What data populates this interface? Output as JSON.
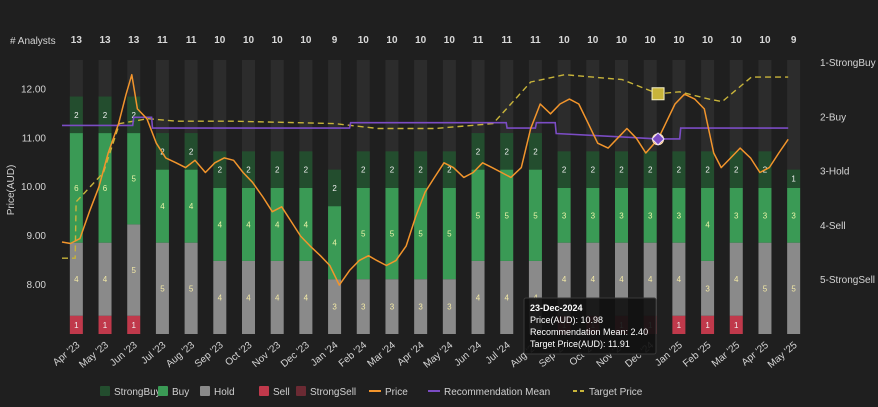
{
  "chart_data": {
    "type": "bar+line",
    "analysts_label": "# Analysts",
    "y_left_label": "Price(AUD)",
    "y_left_ticks": [
      "8.00",
      "9.00",
      "10.00",
      "11.00",
      "12.00"
    ],
    "y_left_range": [
      7.0,
      12.6
    ],
    "y_right_ticks": [
      "1-StrongBuy",
      "2-Buy",
      "3-Hold",
      "4-Sell",
      "5-StrongSell"
    ],
    "x_ticks": [
      "Apr '23",
      "May '23",
      "Jun '23",
      "Jul '23",
      "Aug '23",
      "Sep '23",
      "Oct '23",
      "Nov '23",
      "Dec '23",
      "Jan '24",
      "Feb '24",
      "Mar '24",
      "Apr '24",
      "May '24",
      "Jun '24",
      "Jul '24",
      "Aug '24",
      "Sep '24",
      "Oct '24",
      "Nov '24",
      "Dec '24",
      "Jan '25",
      "Feb '25",
      "Mar '25",
      "Apr '25",
      "May '25"
    ],
    "months": [
      "2023-04",
      "2023-05",
      "2023-06",
      "2023-07",
      "2023-08",
      "2023-09",
      "2023-10",
      "2023-11",
      "2023-12",
      "2024-01",
      "2024-02",
      "2024-03",
      "2024-04",
      "2024-05",
      "2024-06",
      "2024-07",
      "2024-08",
      "2024-09",
      "2024-10",
      "2024-11",
      "2024-12",
      "2025-01",
      "2025-02",
      "2025-03",
      "2025-04",
      "2025-05"
    ],
    "analyst_counts": [
      "13",
      "13",
      "13",
      "11",
      "11",
      "10",
      "10",
      "10",
      "10",
      "9",
      "10",
      "10",
      "10",
      "10",
      "11",
      "11",
      "11",
      "10",
      "10",
      "10",
      "10",
      "10",
      "10",
      "10",
      "10",
      "9"
    ],
    "ratings": [
      {
        "strong_buy": 2,
        "buy": 6,
        "hold": 4,
        "sell": 1,
        "strong_sell": 0
      },
      {
        "strong_buy": 2,
        "buy": 6,
        "hold": 4,
        "sell": 1,
        "strong_sell": 0
      },
      {
        "strong_buy": 2,
        "buy": 5,
        "hold": 5,
        "sell": 1,
        "strong_sell": 0
      },
      {
        "strong_buy": 2,
        "buy": 4,
        "hold": 5,
        "sell": 0,
        "strong_sell": 0
      },
      {
        "strong_buy": 2,
        "buy": 4,
        "hold": 5,
        "sell": 0,
        "strong_sell": 0
      },
      {
        "strong_buy": 2,
        "buy": 4,
        "hold": 4,
        "sell": 0,
        "strong_sell": 0
      },
      {
        "strong_buy": 2,
        "buy": 4,
        "hold": 4,
        "sell": 0,
        "strong_sell": 0
      },
      {
        "strong_buy": 2,
        "buy": 4,
        "hold": 4,
        "sell": 0,
        "strong_sell": 0
      },
      {
        "strong_buy": 2,
        "buy": 4,
        "hold": 4,
        "sell": 0,
        "strong_sell": 0
      },
      {
        "strong_buy": 2,
        "buy": 4,
        "hold": 3,
        "sell": 0,
        "strong_sell": 0
      },
      {
        "strong_buy": 2,
        "buy": 5,
        "hold": 3,
        "sell": 0,
        "strong_sell": 0
      },
      {
        "strong_buy": 2,
        "buy": 5,
        "hold": 3,
        "sell": 0,
        "strong_sell": 0
      },
      {
        "strong_buy": 2,
        "buy": 5,
        "hold": 3,
        "sell": 0,
        "strong_sell": 0
      },
      {
        "strong_buy": 2,
        "buy": 5,
        "hold": 3,
        "sell": 0,
        "strong_sell": 0
      },
      {
        "strong_buy": 2,
        "buy": 5,
        "hold": 4,
        "sell": 0,
        "strong_sell": 0
      },
      {
        "strong_buy": 2,
        "buy": 5,
        "hold": 4,
        "sell": 0,
        "strong_sell": 0
      },
      {
        "strong_buy": 2,
        "buy": 5,
        "hold": 4,
        "sell": 0,
        "strong_sell": 0
      },
      {
        "strong_buy": 2,
        "buy": 3,
        "hold": 4,
        "sell": 1,
        "strong_sell": 0
      },
      {
        "strong_buy": 2,
        "buy": 3,
        "hold": 4,
        "sell": 1,
        "strong_sell": 0
      },
      {
        "strong_buy": 2,
        "buy": 3,
        "hold": 4,
        "sell": 1,
        "strong_sell": 0
      },
      {
        "strong_buy": 2,
        "buy": 3,
        "hold": 4,
        "sell": 1,
        "strong_sell": 0
      },
      {
        "strong_buy": 2,
        "buy": 3,
        "hold": 4,
        "sell": 1,
        "strong_sell": 0
      },
      {
        "strong_buy": 2,
        "buy": 4,
        "hold": 3,
        "sell": 1,
        "strong_sell": 0
      },
      {
        "strong_buy": 2,
        "buy": 3,
        "hold": 4,
        "sell": 1,
        "strong_sell": 0
      },
      {
        "strong_buy": 2,
        "buy": 3,
        "hold": 5,
        "sell": 0,
        "strong_sell": 0
      },
      {
        "strong_buy": 1,
        "buy": 3,
        "hold": 5,
        "sell": 0,
        "strong_sell": 0
      }
    ],
    "price": [
      [
        "2023-04-01",
        8.88
      ],
      [
        "2023-04-10",
        8.85
      ],
      [
        "2023-04-20",
        8.95
      ],
      [
        "2023-04-30",
        9.5
      ],
      [
        "2023-05-10",
        10.0
      ],
      [
        "2023-05-20",
        10.7
      ],
      [
        "2023-05-31",
        11.3
      ],
      [
        "2023-06-08",
        11.9
      ],
      [
        "2023-06-14",
        12.3
      ],
      [
        "2023-06-20",
        11.6
      ],
      [
        "2023-06-30",
        11.4
      ],
      [
        "2023-07-10",
        10.9
      ],
      [
        "2023-07-20",
        10.6
      ],
      [
        "2023-07-31",
        10.5
      ],
      [
        "2023-08-10",
        10.4
      ],
      [
        "2023-08-20",
        10.55
      ],
      [
        "2023-08-31",
        10.3
      ],
      [
        "2023-09-10",
        10.5
      ],
      [
        "2023-09-20",
        10.6
      ],
      [
        "2023-09-30",
        10.55
      ],
      [
        "2023-10-10",
        10.3
      ],
      [
        "2023-10-20",
        10.1
      ],
      [
        "2023-10-31",
        9.8
      ],
      [
        "2023-11-10",
        9.5
      ],
      [
        "2023-11-20",
        9.6
      ],
      [
        "2023-11-30",
        9.3
      ],
      [
        "2023-12-10",
        9.0
      ],
      [
        "2023-12-20",
        8.8
      ],
      [
        "2023-12-31",
        8.6
      ],
      [
        "2024-01-10",
        8.4
      ],
      [
        "2024-01-20",
        8.0
      ],
      [
        "2024-01-31",
        8.3
      ],
      [
        "2024-02-10",
        8.5
      ],
      [
        "2024-02-20",
        8.6
      ],
      [
        "2024-02-29",
        8.5
      ],
      [
        "2024-03-10",
        8.4
      ],
      [
        "2024-03-20",
        8.5
      ],
      [
        "2024-03-31",
        8.8
      ],
      [
        "2024-04-10",
        9.4
      ],
      [
        "2024-04-20",
        9.9
      ],
      [
        "2024-04-30",
        10.2
      ],
      [
        "2024-05-10",
        10.5
      ],
      [
        "2024-05-20",
        10.4
      ],
      [
        "2024-05-31",
        10.2
      ],
      [
        "2024-06-10",
        10.3
      ],
      [
        "2024-06-20",
        10.5
      ],
      [
        "2024-06-30",
        10.4
      ],
      [
        "2024-07-10",
        10.3
      ],
      [
        "2024-07-20",
        10.2
      ],
      [
        "2024-07-31",
        10.4
      ],
      [
        "2024-08-10",
        11.2
      ],
      [
        "2024-08-20",
        11.7
      ],
      [
        "2024-08-31",
        11.5
      ],
      [
        "2024-09-10",
        11.7
      ],
      [
        "2024-09-20",
        11.8
      ],
      [
        "2024-09-30",
        11.7
      ],
      [
        "2024-10-10",
        11.3
      ],
      [
        "2024-10-20",
        10.9
      ],
      [
        "2024-10-31",
        10.8
      ],
      [
        "2024-11-10",
        11.0
      ],
      [
        "2024-11-20",
        11.2
      ],
      [
        "2024-11-30",
        11.0
      ],
      [
        "2024-12-10",
        10.7
      ],
      [
        "2024-12-23",
        10.98
      ],
      [
        "2024-12-31",
        11.3
      ],
      [
        "2025-01-10",
        11.7
      ],
      [
        "2025-01-20",
        11.9
      ],
      [
        "2025-01-31",
        11.8
      ],
      [
        "2025-02-10",
        11.6
      ],
      [
        "2025-02-20",
        10.7
      ],
      [
        "2025-02-28",
        10.4
      ],
      [
        "2025-03-10",
        10.6
      ],
      [
        "2025-03-20",
        10.8
      ],
      [
        "2025-03-31",
        10.6
      ],
      [
        "2025-04-10",
        10.3
      ],
      [
        "2025-04-20",
        10.4
      ],
      [
        "2025-04-30",
        10.7
      ],
      [
        "2025-05-10",
        10.98
      ]
    ],
    "recommendation_mean": [
      [
        "2023-04-01",
        2.15
      ],
      [
        "2023-06-15",
        2.15
      ],
      [
        "2023-06-16",
        2.0
      ],
      [
        "2023-07-05",
        2.0
      ],
      [
        "2023-07-06",
        2.2
      ],
      [
        "2024-01-31",
        2.2
      ],
      [
        "2024-02-01",
        2.1
      ],
      [
        "2024-07-15",
        2.1
      ],
      [
        "2024-07-16",
        2.2
      ],
      [
        "2024-08-15",
        2.2
      ],
      [
        "2024-08-16",
        2.1
      ],
      [
        "2024-09-05",
        2.1
      ],
      [
        "2024-09-06",
        2.3
      ],
      [
        "2024-12-23",
        2.4
      ],
      [
        "2025-01-15",
        2.4
      ],
      [
        "2025-01-16",
        2.2
      ],
      [
        "2025-05-10",
        2.2
      ]
    ],
    "target_price": [
      [
        "2023-04-01",
        8.55
      ],
      [
        "2023-04-15",
        8.55
      ],
      [
        "2023-04-16",
        9.7
      ],
      [
        "2023-05-15",
        10.3
      ],
      [
        "2023-06-01",
        11.3
      ],
      [
        "2023-07-01",
        11.4
      ],
      [
        "2023-08-01",
        11.35
      ],
      [
        "2023-10-01",
        11.35
      ],
      [
        "2024-01-15",
        11.3
      ],
      [
        "2024-03-01",
        11.2
      ],
      [
        "2024-05-01",
        11.2
      ],
      [
        "2024-07-01",
        11.3
      ],
      [
        "2024-07-20",
        11.7
      ],
      [
        "2024-08-10",
        12.15
      ],
      [
        "2024-09-15",
        12.3
      ],
      [
        "2024-10-15",
        12.25
      ],
      [
        "2024-11-15",
        12.2
      ],
      [
        "2024-12-23",
        11.91
      ],
      [
        "2025-01-15",
        11.95
      ],
      [
        "2025-02-15",
        11.8
      ],
      [
        "2025-03-01",
        11.75
      ],
      [
        "2025-04-01",
        12.25
      ],
      [
        "2025-05-10",
        12.25
      ]
    ],
    "tooltip": {
      "date": "23-Dec-2024",
      "price": "Price(AUD): 10.98",
      "mean": "Recommendation Mean: 2.40",
      "target": "Target Price(AUD): 11.91"
    },
    "highlight_date": "2024-12-23",
    "legend": [
      {
        "key": "strong_buy",
        "label": "StrongBuy",
        "kind": "square"
      },
      {
        "key": "buy",
        "label": "Buy",
        "kind": "square"
      },
      {
        "key": "hold",
        "label": "Hold",
        "kind": "square"
      },
      {
        "key": "sell",
        "label": "Sell",
        "kind": "square"
      },
      {
        "key": "strong_sell",
        "label": "StrongSell",
        "kind": "square"
      },
      {
        "key": "price",
        "label": "Price",
        "kind": "line"
      },
      {
        "key": "recommendation_mean",
        "label": "Recommendation Mean",
        "kind": "line"
      },
      {
        "key": "target_price",
        "label": "Target Price",
        "kind": "dash"
      }
    ],
    "colors": {
      "strong_buy": "#234d2e",
      "buy": "#3a9a55",
      "hold": "#8a8a8a",
      "sell": "#c0394b",
      "strong_sell": "#6b2a33",
      "price": "#f2952c",
      "recommendation_mean": "#7b4cc4",
      "target_price": "#c8b43a",
      "tooltip_bg": "#111111",
      "bar_bg": "#2c2c2c"
    }
  }
}
